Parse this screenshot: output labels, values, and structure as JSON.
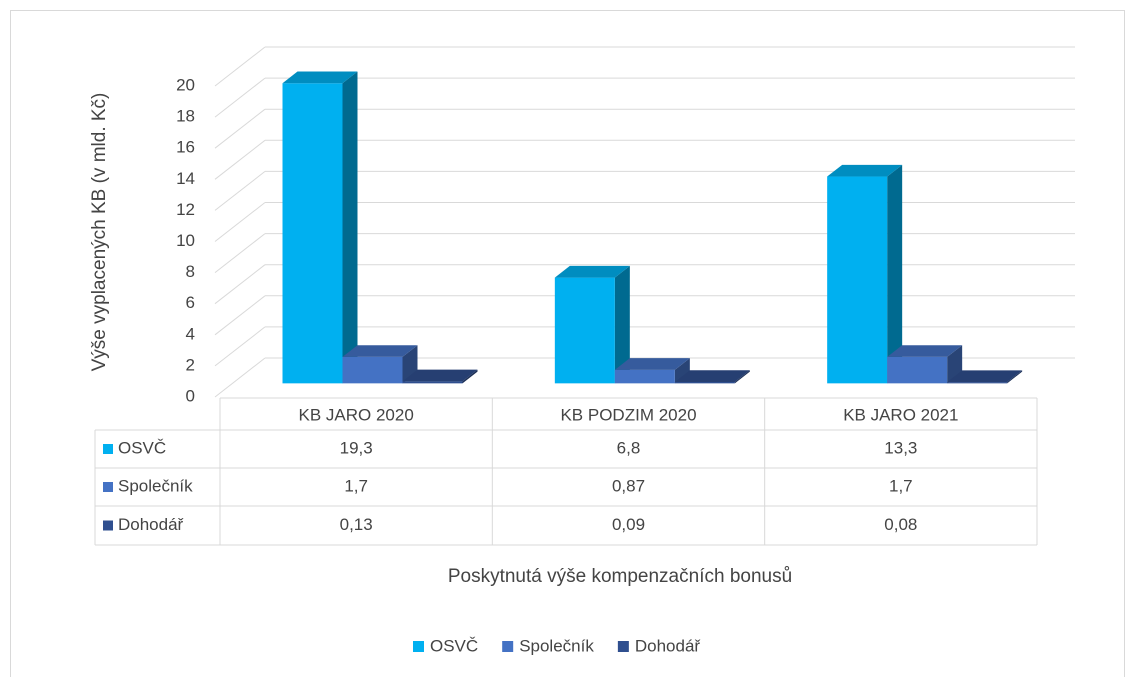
{
  "chart_data": {
    "type": "bar3d",
    "ylabel": "Výše vyplacených KB (v mld. Kč)",
    "xlabel": "Poskytnutá výše kompenzačních bonusů",
    "categories": [
      "KB JARO 2020",
      "KB PODZIM 2020",
      "KB JARO 2021"
    ],
    "series": [
      {
        "name": "OSVČ",
        "color": "#00b0f0",
        "values": [
          19.3,
          6.8,
          13.3
        ],
        "value_labels": [
          "19,3",
          "6,8",
          "13,3"
        ]
      },
      {
        "name": "Společník",
        "color": "#4472c4",
        "values": [
          1.7,
          0.87,
          1.7
        ],
        "value_labels": [
          "1,7",
          "0,87",
          "1,7"
        ]
      },
      {
        "name": "Dohodář",
        "color": "#2f4f8f",
        "values": [
          0.13,
          0.09,
          0.08
        ],
        "value_labels": [
          "0,13",
          "0,09",
          "0,08"
        ]
      }
    ],
    "ylim": [
      0,
      20
    ],
    "yticks": [
      0,
      2,
      4,
      6,
      8,
      10,
      12,
      14,
      16,
      18,
      20
    ],
    "grid": true,
    "legend": "bottom"
  }
}
